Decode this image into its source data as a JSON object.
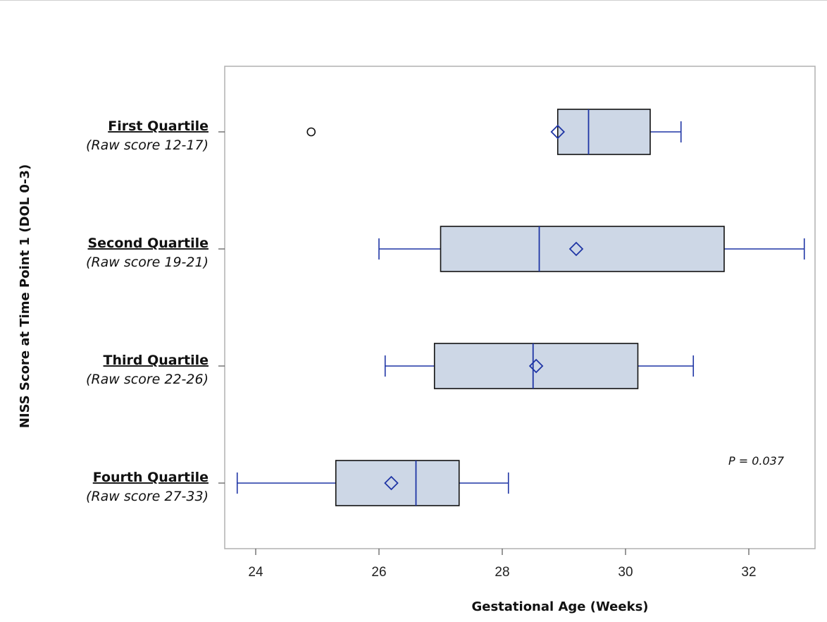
{
  "chart_data": {
    "type": "boxplot",
    "orientation": "horizontal",
    "xlabel": "Gestational Age (Weeks)",
    "ylabel": "NISS Score at Time Point 1 (DOL 0-3)",
    "xlim": [
      23.3,
      33.0
    ],
    "xticks": [
      24,
      26,
      28,
      30,
      32
    ],
    "grid": false,
    "annotation": "P = 0.037",
    "colors": {
      "box_fill": "#cdd7e6",
      "box_stroke": "#111111",
      "whisker": "#1f35a5",
      "median": "#1f35a5",
      "mean_marker": "#1f35a5",
      "outlier": "#111111",
      "frame": "#b0b0b0"
    },
    "categories": [
      {
        "name": "First Quartile",
        "subtitle": "(Raw score 12-17)",
        "whisker_low": 28.9,
        "q1": 28.9,
        "median": 29.4,
        "q3": 30.4,
        "whisker_high": 30.9,
        "mean": 28.9,
        "outliers": [
          24.9
        ]
      },
      {
        "name": "Second Quartile",
        "subtitle": "(Raw score 19-21)",
        "whisker_low": 26.0,
        "q1": 27.0,
        "median": 28.6,
        "q3": 31.6,
        "whisker_high": 32.9,
        "mean": 29.2,
        "outliers": []
      },
      {
        "name": "Third Quartile",
        "subtitle": "(Raw score 22-26)",
        "whisker_low": 26.1,
        "q1": 26.9,
        "median": 28.5,
        "q3": 30.2,
        "whisker_high": 31.1,
        "mean": 28.55,
        "outliers": []
      },
      {
        "name": "Fourth Quartile",
        "subtitle": "(Raw score 27-33)",
        "whisker_low": 23.7,
        "q1": 25.3,
        "median": 26.6,
        "q3": 27.3,
        "whisker_high": 28.1,
        "mean": 26.2,
        "outliers": []
      }
    ]
  }
}
